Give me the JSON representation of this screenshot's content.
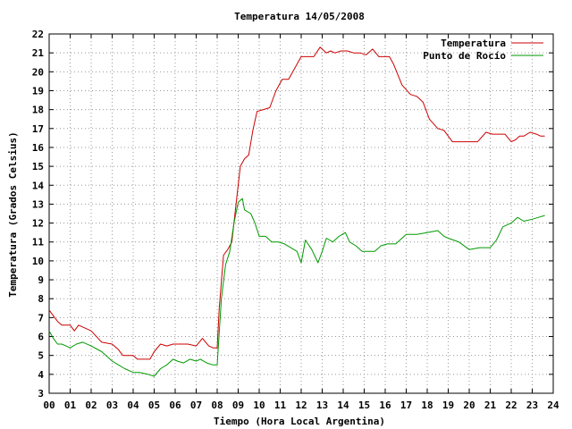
{
  "chart_data": {
    "type": "line",
    "title": "Temperatura 14/05/2008",
    "xlabel": "Tiempo (Hora Local Argentina)",
    "ylabel": "Temperatura (Grados Celsius)",
    "xlim": [
      0,
      24
    ],
    "ylim": [
      3,
      22
    ],
    "x_tick_labels": [
      "00",
      "01",
      "02",
      "03",
      "04",
      "05",
      "06",
      "07",
      "08",
      "09",
      "10",
      "11",
      "12",
      "13",
      "14",
      "15",
      "16",
      "17",
      "18",
      "19",
      "20",
      "21",
      "22",
      "23",
      "24"
    ],
    "y_ticks": [
      3,
      4,
      5,
      6,
      7,
      8,
      9,
      10,
      11,
      12,
      13,
      14,
      15,
      16,
      17,
      18,
      19,
      20,
      21,
      22
    ],
    "grid": true,
    "legend_position": "top-right",
    "colors": {
      "temperatura": "#cc0000",
      "punto_de_rocio": "#009900"
    },
    "series": [
      {
        "name": "Temperatura",
        "x": [
          0,
          0.2,
          0.4,
          0.6,
          1.0,
          1.2,
          1.4,
          1.6,
          2.0,
          2.5,
          3.0,
          3.3,
          3.5,
          4.0,
          4.2,
          4.5,
          4.8,
          5.0,
          5.3,
          5.6,
          5.9,
          6.2,
          6.6,
          7.0,
          7.3,
          7.6,
          7.8,
          8.0,
          8.1,
          8.3,
          8.5,
          8.7,
          8.9,
          9.1,
          9.3,
          9.5,
          9.7,
          9.9,
          10.2,
          10.5,
          10.8,
          11.1,
          11.4,
          11.7,
          12.0,
          12.3,
          12.6,
          12.9,
          13.2,
          13.4,
          13.6,
          13.9,
          14.2,
          14.5,
          14.8,
          15.1,
          15.4,
          15.7,
          16.0,
          16.2,
          16.4,
          16.8,
          17.2,
          17.5,
          17.8,
          18.1,
          18.5,
          18.8,
          19.2,
          19.6,
          20.0,
          20.4,
          20.8,
          21.1,
          21.4,
          21.7,
          22.0,
          22.2,
          22.4,
          22.6,
          22.9,
          23.2,
          23.4,
          23.6
        ],
        "y": [
          7.4,
          7.1,
          6.8,
          6.6,
          6.6,
          6.3,
          6.6,
          6.5,
          6.3,
          5.7,
          5.6,
          5.3,
          5.0,
          5.0,
          4.8,
          4.8,
          4.8,
          5.2,
          5.6,
          5.5,
          5.6,
          5.6,
          5.6,
          5.5,
          5.9,
          5.5,
          5.4,
          5.4,
          7.5,
          10.3,
          10.6,
          11.0,
          13.0,
          15.0,
          15.4,
          15.6,
          16.9,
          17.9,
          18.0,
          18.1,
          19.0,
          19.6,
          19.6,
          20.2,
          20.8,
          20.8,
          20.8,
          21.3,
          21.0,
          21.1,
          21.0,
          21.1,
          21.1,
          21.0,
          21.0,
          20.9,
          21.2,
          20.8,
          20.8,
          20.8,
          20.4,
          19.3,
          18.8,
          18.7,
          18.4,
          17.5,
          17.0,
          16.9,
          16.3,
          16.3,
          16.3,
          16.3,
          16.8,
          16.7,
          16.7,
          16.7,
          16.3,
          16.4,
          16.6,
          16.6,
          16.8,
          16.7,
          16.6,
          16.6
        ]
      },
      {
        "name": "Punto de Rocío",
        "x": [
          0,
          0.2,
          0.4,
          0.6,
          0.8,
          1.0,
          1.3,
          1.6,
          2.0,
          2.5,
          3.0,
          3.3,
          3.6,
          4.0,
          4.3,
          4.7,
          5.0,
          5.3,
          5.6,
          5.9,
          6.1,
          6.4,
          6.7,
          7.0,
          7.2,
          7.5,
          7.8,
          8.0,
          8.2,
          8.4,
          8.6,
          8.8,
          9.0,
          9.2,
          9.3,
          9.6,
          9.8,
          10.0,
          10.3,
          10.6,
          10.9,
          11.2,
          11.5,
          11.8,
          12.0,
          12.2,
          12.5,
          12.8,
          13.0,
          13.2,
          13.5,
          13.8,
          14.1,
          14.3,
          14.6,
          14.9,
          15.2,
          15.5,
          15.8,
          16.1,
          16.5,
          17.0,
          17.5,
          18.0,
          18.5,
          18.8,
          19.0,
          19.5,
          20.0,
          20.5,
          21.0,
          21.3,
          21.6,
          22.0,
          22.3,
          22.6,
          23.0,
          23.3,
          23.6
        ],
        "y": [
          6.3,
          5.9,
          5.6,
          5.6,
          5.5,
          5.4,
          5.6,
          5.7,
          5.5,
          5.2,
          4.7,
          4.5,
          4.3,
          4.1,
          4.1,
          4.0,
          3.9,
          4.3,
          4.5,
          4.8,
          4.7,
          4.6,
          4.8,
          4.7,
          4.8,
          4.6,
          4.5,
          4.5,
          8.0,
          9.8,
          10.5,
          12.0,
          13.1,
          13.3,
          12.7,
          12.5,
          12.0,
          11.3,
          11.3,
          11.0,
          11.0,
          10.9,
          10.7,
          10.5,
          9.9,
          11.1,
          10.6,
          9.9,
          10.5,
          11.2,
          11.0,
          11.3,
          11.5,
          11.0,
          10.8,
          10.5,
          10.5,
          10.5,
          10.8,
          10.9,
          10.9,
          11.4,
          11.4,
          11.5,
          11.6,
          11.3,
          11.2,
          11.0,
          10.6,
          10.7,
          10.7,
          11.1,
          11.8,
          12.0,
          12.3,
          12.1,
          12.2,
          12.3,
          12.4
        ]
      }
    ]
  }
}
